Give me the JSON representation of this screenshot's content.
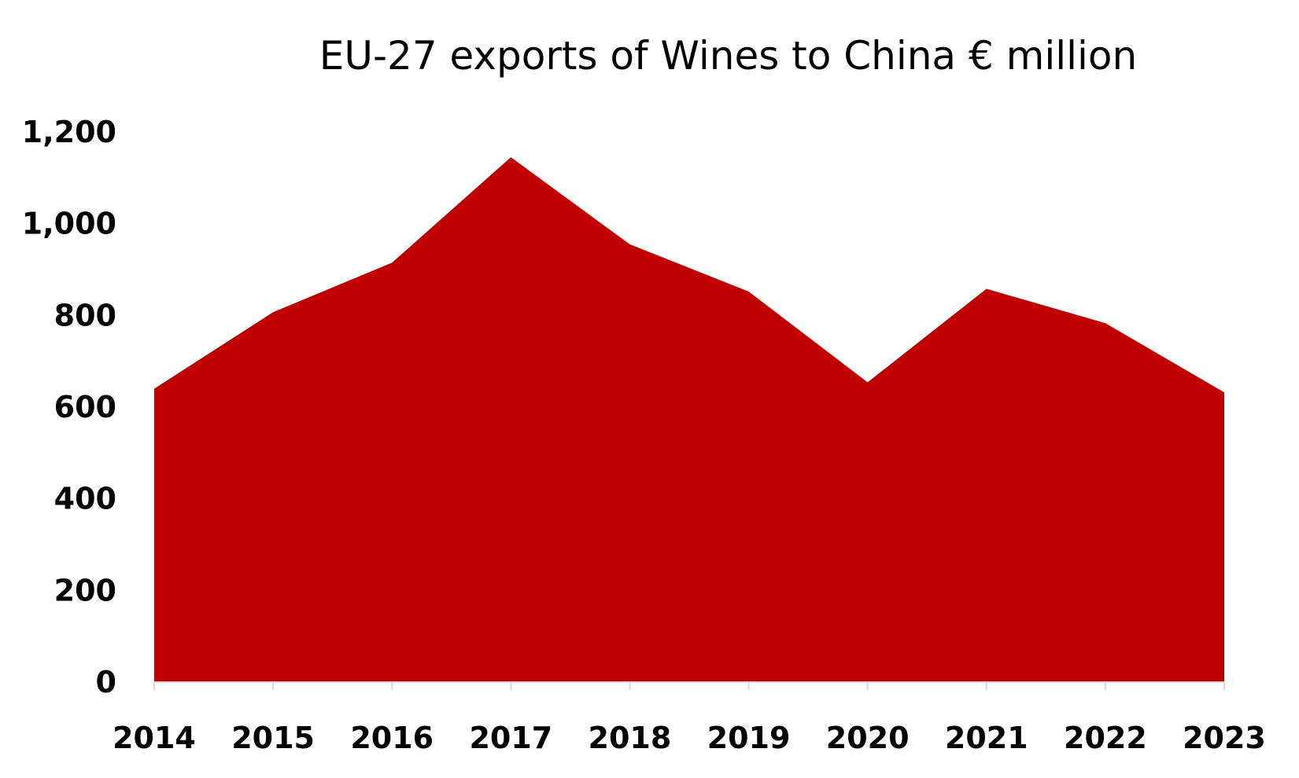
{
  "chart_data": {
    "type": "area",
    "title": "EU-27 exports of Wines to China € million",
    "xlabel": "",
    "ylabel": "",
    "categories": [
      "2014",
      "2015",
      "2016",
      "2017",
      "2018",
      "2019",
      "2020",
      "2021",
      "2022",
      "2023"
    ],
    "values": [
      640,
      807,
      915,
      1145,
      955,
      852,
      654,
      858,
      783,
      632
    ],
    "ylim": [
      0,
      1200
    ],
    "yticks": [
      0,
      200,
      400,
      600,
      800,
      1000,
      1200
    ],
    "ytick_labels": [
      "0",
      "200",
      "400",
      "600",
      "800",
      "1,000",
      "1,200"
    ],
    "grid": false,
    "legend": "none",
    "colors": {
      "fill": "#C00000",
      "axis": "#D9D9D9"
    }
  }
}
